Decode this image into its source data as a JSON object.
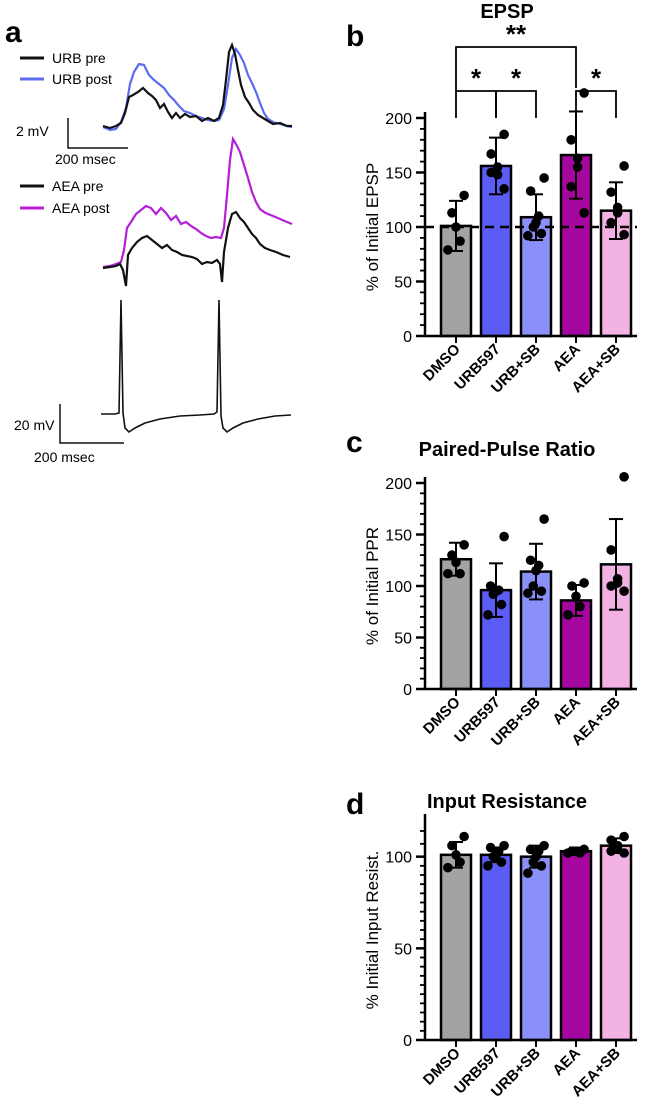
{
  "panels": {
    "a": "a",
    "b": "b",
    "c": "c",
    "d": "d"
  },
  "traces": {
    "legend_top": [
      {
        "label": "URB pre",
        "color": "#111111"
      },
      {
        "label": "URB post",
        "color": "#5b6cf2"
      }
    ],
    "legend_mid": [
      {
        "label": "AEA pre",
        "color": "#111111"
      },
      {
        "label": "AEA post",
        "color": "#b51fd8"
      }
    ],
    "scale_top": {
      "v": "2 mV",
      "t": "200 msec"
    },
    "scale_bottom": {
      "v": "20 mV",
      "t": "200 msec"
    }
  },
  "chart_data": [
    {
      "type": "bar",
      "title": "EPSP",
      "ylabel": "% of Initial EPSP",
      "ylim": [
        0,
        200
      ],
      "yticks": [
        0,
        50,
        100,
        150,
        200
      ],
      "baseline": 100,
      "categories": [
        "DMSO",
        "URB597",
        "URB+SB",
        "AEA",
        "AEA+SB"
      ],
      "colors": [
        "#a3a3a5",
        "#5b5cf6",
        "#8a90f7",
        "#a5069e",
        "#f2b2e4"
      ],
      "values": [
        101,
        156,
        109,
        166,
        115
      ],
      "error": [
        23,
        26,
        21,
        40,
        26
      ],
      "points": [
        [
          129,
          113,
          100,
          87,
          79
        ],
        [
          185,
          167,
          155,
          148,
          150,
          135
        ],
        [
          145,
          133,
          110,
          104,
          100,
          94,
          92
        ],
        [
          223,
          180,
          163,
          155,
          137,
          113
        ],
        [
          156,
          132,
          118,
          113,
          104,
          93
        ]
      ],
      "significance": [
        {
          "from": 0,
          "to": 1,
          "label": "*",
          "level": 1
        },
        {
          "from": 1,
          "to": 2,
          "label": "*",
          "level": 1
        },
        {
          "from": 3,
          "to": 4,
          "label": "*",
          "level": 1
        },
        {
          "from": 0,
          "to": 3,
          "label": "**",
          "level": 2
        }
      ]
    },
    {
      "type": "bar",
      "title": "Paired-Pulse Ratio",
      "ylabel": "% of Initial PPR",
      "ylim": [
        0,
        200
      ],
      "yticks": [
        0,
        50,
        100,
        150,
        200
      ],
      "categories": [
        "DMSO",
        "URB597",
        "URB+SB",
        "AEA",
        "AEA+SB"
      ],
      "colors": [
        "#a3a3a5",
        "#5b5cf6",
        "#8a90f7",
        "#a5069e",
        "#f2b2e4"
      ],
      "values": [
        126,
        96,
        114,
        86,
        121
      ],
      "error": [
        16,
        26,
        27,
        15,
        44
      ],
      "points": [
        [
          140,
          130,
          123,
          112,
          112
        ],
        [
          148,
          100,
          96,
          95,
          92,
          82,
          72
        ],
        [
          165,
          125,
          120,
          115,
          100,
          95,
          93
        ],
        [
          103,
          100,
          90,
          80,
          72
        ],
        [
          206,
          135,
          107,
          103,
          100,
          95
        ]
      ]
    },
    {
      "type": "bar",
      "title": "Input Resistance",
      "ylabel": "% Initial Input Resist.",
      "ylim": [
        0,
        120
      ],
      "yticks": [
        0,
        50,
        100
      ],
      "categories": [
        "DMSO",
        "URB597",
        "URB+SB",
        "AEA",
        "AEA+SB"
      ],
      "colors": [
        "#a3a3a5",
        "#5b5cf6",
        "#8a90f7",
        "#a5069e",
        "#f2b2e4"
      ],
      "values": [
        101,
        101,
        100,
        103,
        106
      ],
      "error": [
        7,
        4,
        6,
        2,
        4
      ],
      "points": [
        [
          111,
          106,
          101,
          97,
          94
        ],
        [
          106,
          105,
          103,
          101,
          100,
          97,
          95
        ],
        [
          106,
          104,
          103,
          100,
          97,
          95,
          91
        ],
        [
          104,
          103,
          103,
          102,
          102
        ],
        [
          111,
          109,
          106,
          104,
          103,
          102
        ]
      ]
    }
  ]
}
